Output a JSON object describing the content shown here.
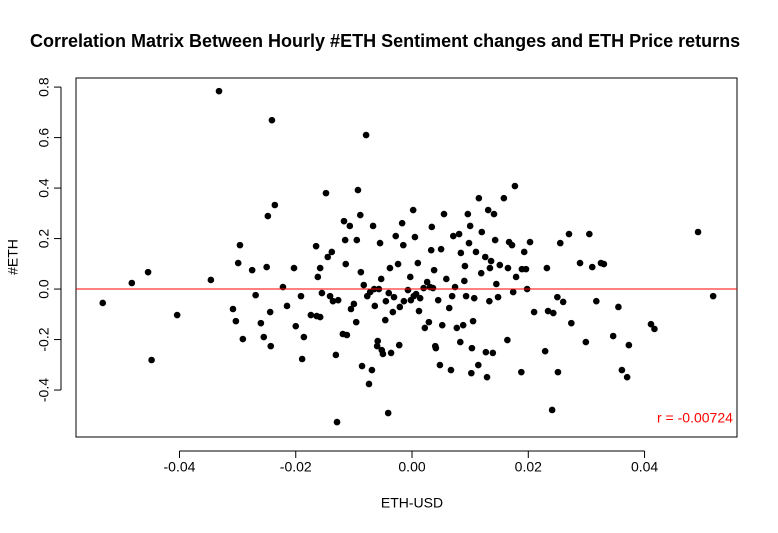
{
  "chart_data": {
    "type": "scatter",
    "title": "Correlation Matrix Between Hourly #ETH Sentiment changes and ETH Price returns",
    "x_label": "ETH-USD",
    "y_label": "#ETH",
    "annotation": "r = -0.00724",
    "annotation_color": "#ff0000",
    "point_color": "#000000",
    "reference_line": {
      "y": 0,
      "color": "#ff0000"
    },
    "xlim": [
      -0.0578,
      0.0559
    ],
    "ylim": [
      -0.586,
      0.836
    ],
    "xticks": [
      -0.04,
      -0.02,
      {
        "value": 0,
        "label": "0.00"
      },
      0.02,
      0.04
    ],
    "yticks": [
      -0.4,
      -0.2,
      {
        "value": 0,
        "label": "0.0"
      },
      0.2,
      0.4,
      0.6,
      0.8
    ],
    "x": [
      -0.0532,
      -0.0482,
      -0.0454,
      -0.0448,
      -0.0404,
      -0.0346,
      -0.0332,
      -0.0308,
      -0.0303,
      -0.0299,
      -0.0296,
      -0.0291,
      -0.0275,
      -0.0269,
      -0.026,
      -0.0255,
      -0.025,
      -0.0248,
      -0.0244,
      -0.0243,
      -0.0241,
      -0.0236,
      -0.0222,
      -0.0215,
      -0.0203,
      -0.02,
      -0.0191,
      -0.0189,
      -0.0186,
      -0.0174,
      -0.0165,
      -0.0164,
      -0.0162,
      -0.0158,
      -0.0158,
      -0.0155,
      -0.0148,
      -0.0145,
      -0.0141,
      -0.0138,
      -0.0136,
      -0.0131,
      -0.0129,
      -0.0127,
      -0.0119,
      -0.0117,
      -0.0115,
      -0.0114,
      -0.0112,
      -0.0107,
      -0.0105,
      -0.01,
      -0.0096,
      -0.0095,
      -0.0093,
      -0.0089,
      -0.0088,
      -0.0086,
      -0.0083,
      -0.0079,
      -0.0077,
      -0.0074,
      -0.0072,
      -0.0069,
      -0.0067,
      -0.0065,
      -0.0064,
      -0.006,
      -0.0059,
      -0.0057,
      -0.0055,
      -0.0053,
      -0.0052,
      -0.005,
      -0.0046,
      -0.0045,
      -0.0041,
      -0.004,
      -0.0038,
      -0.0036,
      -0.0033,
      -0.0031,
      -0.0028,
      -0.0024,
      -0.0022,
      -0.0021,
      -0.0017,
      -0.0015,
      -0.0014,
      -0.0007,
      -0.0003,
      -0.0002,
      0.0002,
      0.0003,
      0.0005,
      0.0007,
      0.001,
      0.0012,
      0.0014,
      0.002,
      0.0022,
      0.0026,
      0.0029,
      0.0031,
      0.0033,
      0.0034,
      0.0036,
      0.0038,
      0.004,
      0.0041,
      0.0045,
      0.0048,
      0.005,
      0.0052,
      0.0055,
      0.0059,
      0.0064,
      0.0067,
      0.0069,
      0.0071,
      0.0074,
      0.0077,
      0.0081,
      0.0083,
      0.0084,
      0.0088,
      0.009,
      0.0091,
      0.0093,
      0.0096,
      0.0098,
      0.01,
      0.0102,
      0.0103,
      0.0105,
      0.0107,
      0.011,
      0.0114,
      0.0115,
      0.0119,
      0.012,
      0.0126,
      0.0127,
      0.0129,
      0.0131,
      0.0133,
      0.0134,
      0.0136,
      0.0139,
      0.0141,
      0.0143,
      0.0145,
      0.0148,
      0.0151,
      0.0158,
      0.0164,
      0.0165,
      0.0167,
      0.0172,
      0.0174,
      0.0177,
      0.0179,
      0.0188,
      0.0189,
      0.0193,
      0.0196,
      0.0198,
      0.0203,
      0.021,
      0.0229,
      0.0232,
      0.0234,
      0.0241,
      0.0243,
      0.025,
      0.0251,
      0.0255,
      0.026,
      0.027,
      0.0274,
      0.0289,
      0.0299,
      0.0305,
      0.031,
      0.0317,
      0.0325,
      0.033,
      0.0346,
      0.0355,
      0.0361,
      0.037,
      0.0373,
      0.0411,
      0.0417,
      0.0492,
      0.0518
    ],
    "values": [
      -0.055,
      0.024,
      0.067,
      -0.281,
      -0.103,
      0.036,
      0.784,
      -0.079,
      -0.127,
      0.103,
      0.174,
      -0.198,
      0.075,
      -0.024,
      -0.135,
      -0.19,
      0.087,
      0.289,
      -0.091,
      -0.226,
      0.669,
      0.333,
      0.008,
      -0.067,
      0.083,
      -0.147,
      -0.028,
      -0.277,
      -0.19,
      -0.103,
      0.17,
      -0.107,
      0.048,
      -0.111,
      0.083,
      -0.016,
      0.38,
      0.127,
      -0.028,
      0.147,
      -0.048,
      -0.261,
      -0.527,
      -0.044,
      -0.178,
      0.269,
      0.194,
      0.099,
      -0.182,
      0.25,
      -0.079,
      -0.059,
      -0.131,
      0.194,
      0.392,
      0.293,
      0.067,
      -0.305,
      0.016,
      0.61,
      -0.028,
      -0.376,
      -0.012,
      -0.321,
      0.25,
      0,
      -0.067,
      -0.226,
      -0.206,
      0,
      0.182,
      0.04,
      -0.242,
      -0.257,
      -0.123,
      -0.048,
      -0.491,
      -0.016,
      0.083,
      -0.253,
      -0.091,
      -0.032,
      0.21,
      0.099,
      -0.222,
      -0.071,
      0.261,
      0.174,
      -0.048,
      -0.004,
      0.048,
      -0.044,
      0.313,
      -0.028,
      0.206,
      -0.02,
      0.103,
      -0.087,
      -0.036,
      0.004,
      -0.154,
      0.028,
      -0.131,
      0.008,
      0.154,
      0.246,
      0.004,
      0.075,
      -0.226,
      -0.234,
      -0.044,
      -0.301,
      0.158,
      -0.143,
      0.297,
      0.04,
      -0.075,
      -0.321,
      -0.028,
      0.21,
      0.008,
      -0.154,
      0.218,
      -0.21,
      0.143,
      -0.143,
      0.032,
      0.091,
      -0.028,
      0.297,
      0.182,
      0.25,
      -0.333,
      -0.234,
      -0.127,
      -0.036,
      0.147,
      -0.301,
      0.36,
      0.063,
      0.226,
      0.127,
      -0.25,
      -0.349,
      0.313,
      -0.048,
      0.083,
      0.111,
      -0.253,
      0.297,
      0.194,
      0.02,
      -0.032,
      0.095,
      0.36,
      -0.202,
      0.083,
      0.186,
      0.174,
      -0.012,
      0.408,
      0.048,
      -0.329,
      0.079,
      0.147,
      0.079,
      0,
      0.186,
      -0.091,
      -0.246,
      0.083,
      -0.087,
      -0.479,
      -0.095,
      -0.032,
      -0.329,
      0.182,
      -0.051,
      0.218,
      -0.135,
      0.103,
      -0.21,
      0.218,
      0.087,
      -0.048,
      0.103,
      0.099,
      -0.186,
      -0.071,
      -0.321,
      -0.349,
      -0.222,
      -0.139,
      -0.158,
      0.226,
      -0.028
    ]
  }
}
